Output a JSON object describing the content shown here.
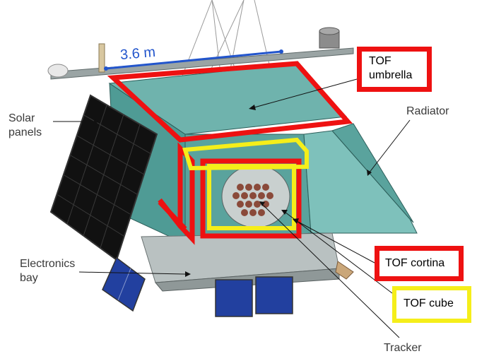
{
  "scale_label": "3.6 m",
  "labels": {
    "solar_panels": "Solar\npanels",
    "radiator": "Radiator",
    "electronics_bay": "Electronics\nbay",
    "tracker": "Tracker"
  },
  "boxes": {
    "tof_umbrella": "TOF\numbrella",
    "tof_cortina": "TOF cortina",
    "tof_cube": "TOF cube"
  },
  "colors": {
    "tof_umbrella": "#ee1111",
    "tof_cortina": "#ee1111",
    "tof_cube": "#f5ee1a",
    "scale_line": "#2255cc",
    "structure": "#5fa8a3",
    "solar_cell": "#0d0d0d",
    "small_panel": "#1e3a9c"
  }
}
